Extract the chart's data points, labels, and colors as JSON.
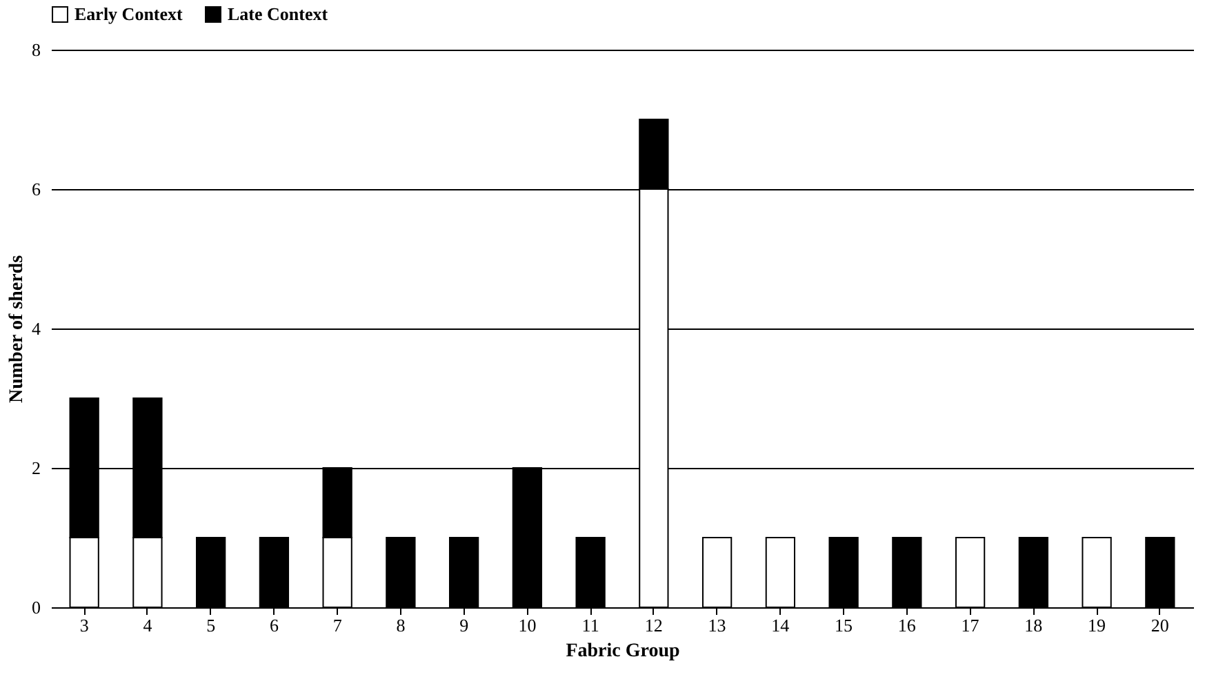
{
  "chart_data": {
    "type": "bar",
    "stacked": true,
    "xlabel": "Fabric Group",
    "ylabel": "Number of sherds",
    "categories": [
      "3",
      "4",
      "5",
      "6",
      "7",
      "8",
      "9",
      "10",
      "11",
      "12",
      "13",
      "14",
      "15",
      "16",
      "17",
      "18",
      "19",
      "20"
    ],
    "series": [
      {
        "name": "Early Context",
        "color": "#ffffff",
        "values": [
          1,
          1,
          0,
          0,
          1,
          0,
          0,
          0,
          0,
          6,
          1,
          1,
          0,
          0,
          1,
          0,
          1,
          0
        ]
      },
      {
        "name": "Late Context",
        "color": "#000000",
        "values": [
          2,
          2,
          1,
          1,
          1,
          1,
          1,
          2,
          1,
          1,
          0,
          0,
          1,
          1,
          0,
          1,
          0,
          1
        ]
      }
    ],
    "ylim": [
      0,
      8
    ],
    "yticks": [
      0,
      2,
      4,
      6,
      8
    ],
    "grid": "y",
    "legend": "top"
  }
}
